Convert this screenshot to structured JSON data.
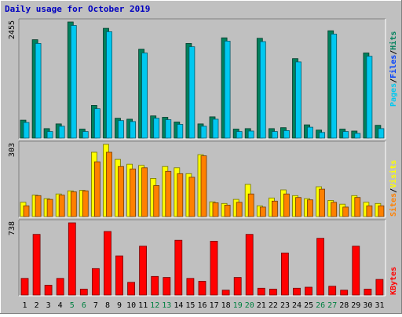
{
  "title": "Daily usage for October 2019",
  "colors": {
    "background": "#c0c0c0",
    "title": "#0000c0",
    "hits": "#00805c",
    "files": "#0040ff",
    "pages": "#00c8f0",
    "visits": "#ffff00",
    "sites": "#ff8000",
    "kbytes": "#ff0000",
    "weekend": "#008040",
    "weekday": "#000000"
  },
  "chart_data": [
    {
      "type": "bar",
      "panel": "hits-files-pages",
      "ymax_label": "2455",
      "ylim": [
        0,
        2455
      ],
      "legend": {
        "pages": "Pages",
        "files": "Files",
        "hits": "Hits",
        "sep": "/"
      },
      "categories": [
        "1",
        "2",
        "3",
        "4",
        "5",
        "6",
        "7",
        "8",
        "9",
        "10",
        "11",
        "12",
        "13",
        "14",
        "15",
        "16",
        "17",
        "18",
        "19",
        "20",
        "21",
        "22",
        "23",
        "24",
        "25",
        "26",
        "27",
        "28",
        "29",
        "30",
        "31"
      ],
      "series": [
        {
          "name": "Hits",
          "values": [
            380,
            2080,
            200,
            300,
            2455,
            190,
            690,
            2320,
            420,
            400,
            1880,
            470,
            440,
            340,
            2000,
            300,
            450,
            2120,
            190,
            200,
            2110,
            200,
            220,
            1680,
            280,
            170,
            2270,
            190,
            150,
            1800,
            270
          ]
        },
        {
          "name": "Files",
          "values": [
            330,
            2000,
            140,
            250,
            2380,
            140,
            620,
            2250,
            370,
            350,
            1800,
            420,
            390,
            290,
            1930,
            250,
            400,
            2050,
            140,
            150,
            2040,
            140,
            160,
            1610,
            230,
            120,
            2200,
            140,
            100,
            1730,
            200
          ]
        }
      ]
    },
    {
      "type": "bar",
      "panel": "visits-sites",
      "ymax_label": "303",
      "ylim": [
        0,
        303
      ],
      "legend": {
        "sites": "Sites",
        "visits": "Visits",
        "sep": "/"
      },
      "categories": [
        "1",
        "2",
        "3",
        "4",
        "5",
        "6",
        "7",
        "8",
        "9",
        "10",
        "11",
        "12",
        "13",
        "14",
        "15",
        "16",
        "17",
        "18",
        "19",
        "20",
        "21",
        "22",
        "23",
        "24",
        "25",
        "26",
        "27",
        "28",
        "29",
        "30",
        "31"
      ],
      "series": [
        {
          "name": "Visits",
          "values": [
            60,
            90,
            75,
            95,
            108,
            110,
            270,
            303,
            240,
            220,
            215,
            160,
            210,
            205,
            180,
            260,
            62,
            55,
            72,
            135,
            45,
            78,
            112,
            88,
            75,
            125,
            68,
            52,
            88,
            60,
            55
          ]
        },
        {
          "name": "Sites",
          "values": [
            45,
            88,
            72,
            90,
            104,
            108,
            230,
            270,
            210,
            200,
            205,
            130,
            190,
            180,
            165,
            255,
            58,
            48,
            60,
            95,
            40,
            65,
            95,
            80,
            70,
            115,
            60,
            40,
            80,
            45,
            45
          ]
        }
      ]
    },
    {
      "type": "bar",
      "panel": "kbytes",
      "ymax_label": "738",
      "ylim": [
        0,
        738
      ],
      "legend": {
        "kbytes": "KBytes"
      },
      "categories": [
        "1",
        "2",
        "3",
        "4",
        "5",
        "6",
        "7",
        "8",
        "9",
        "10",
        "11",
        "12",
        "13",
        "14",
        "15",
        "16",
        "17",
        "18",
        "19",
        "20",
        "21",
        "22",
        "23",
        "24",
        "25",
        "26",
        "27",
        "28",
        "29",
        "30",
        "31"
      ],
      "series": [
        {
          "name": "KBytes",
          "values": [
            170,
            620,
            100,
            170,
            738,
            60,
            270,
            650,
            400,
            130,
            500,
            190,
            180,
            560,
            170,
            140,
            550,
            50,
            180,
            620,
            70,
            60,
            430,
            70,
            80,
            580,
            90,
            50,
            500,
            60,
            160
          ]
        }
      ]
    }
  ],
  "weekend_days": [
    "5",
    "6",
    "12",
    "13",
    "19",
    "20",
    "26",
    "27"
  ]
}
